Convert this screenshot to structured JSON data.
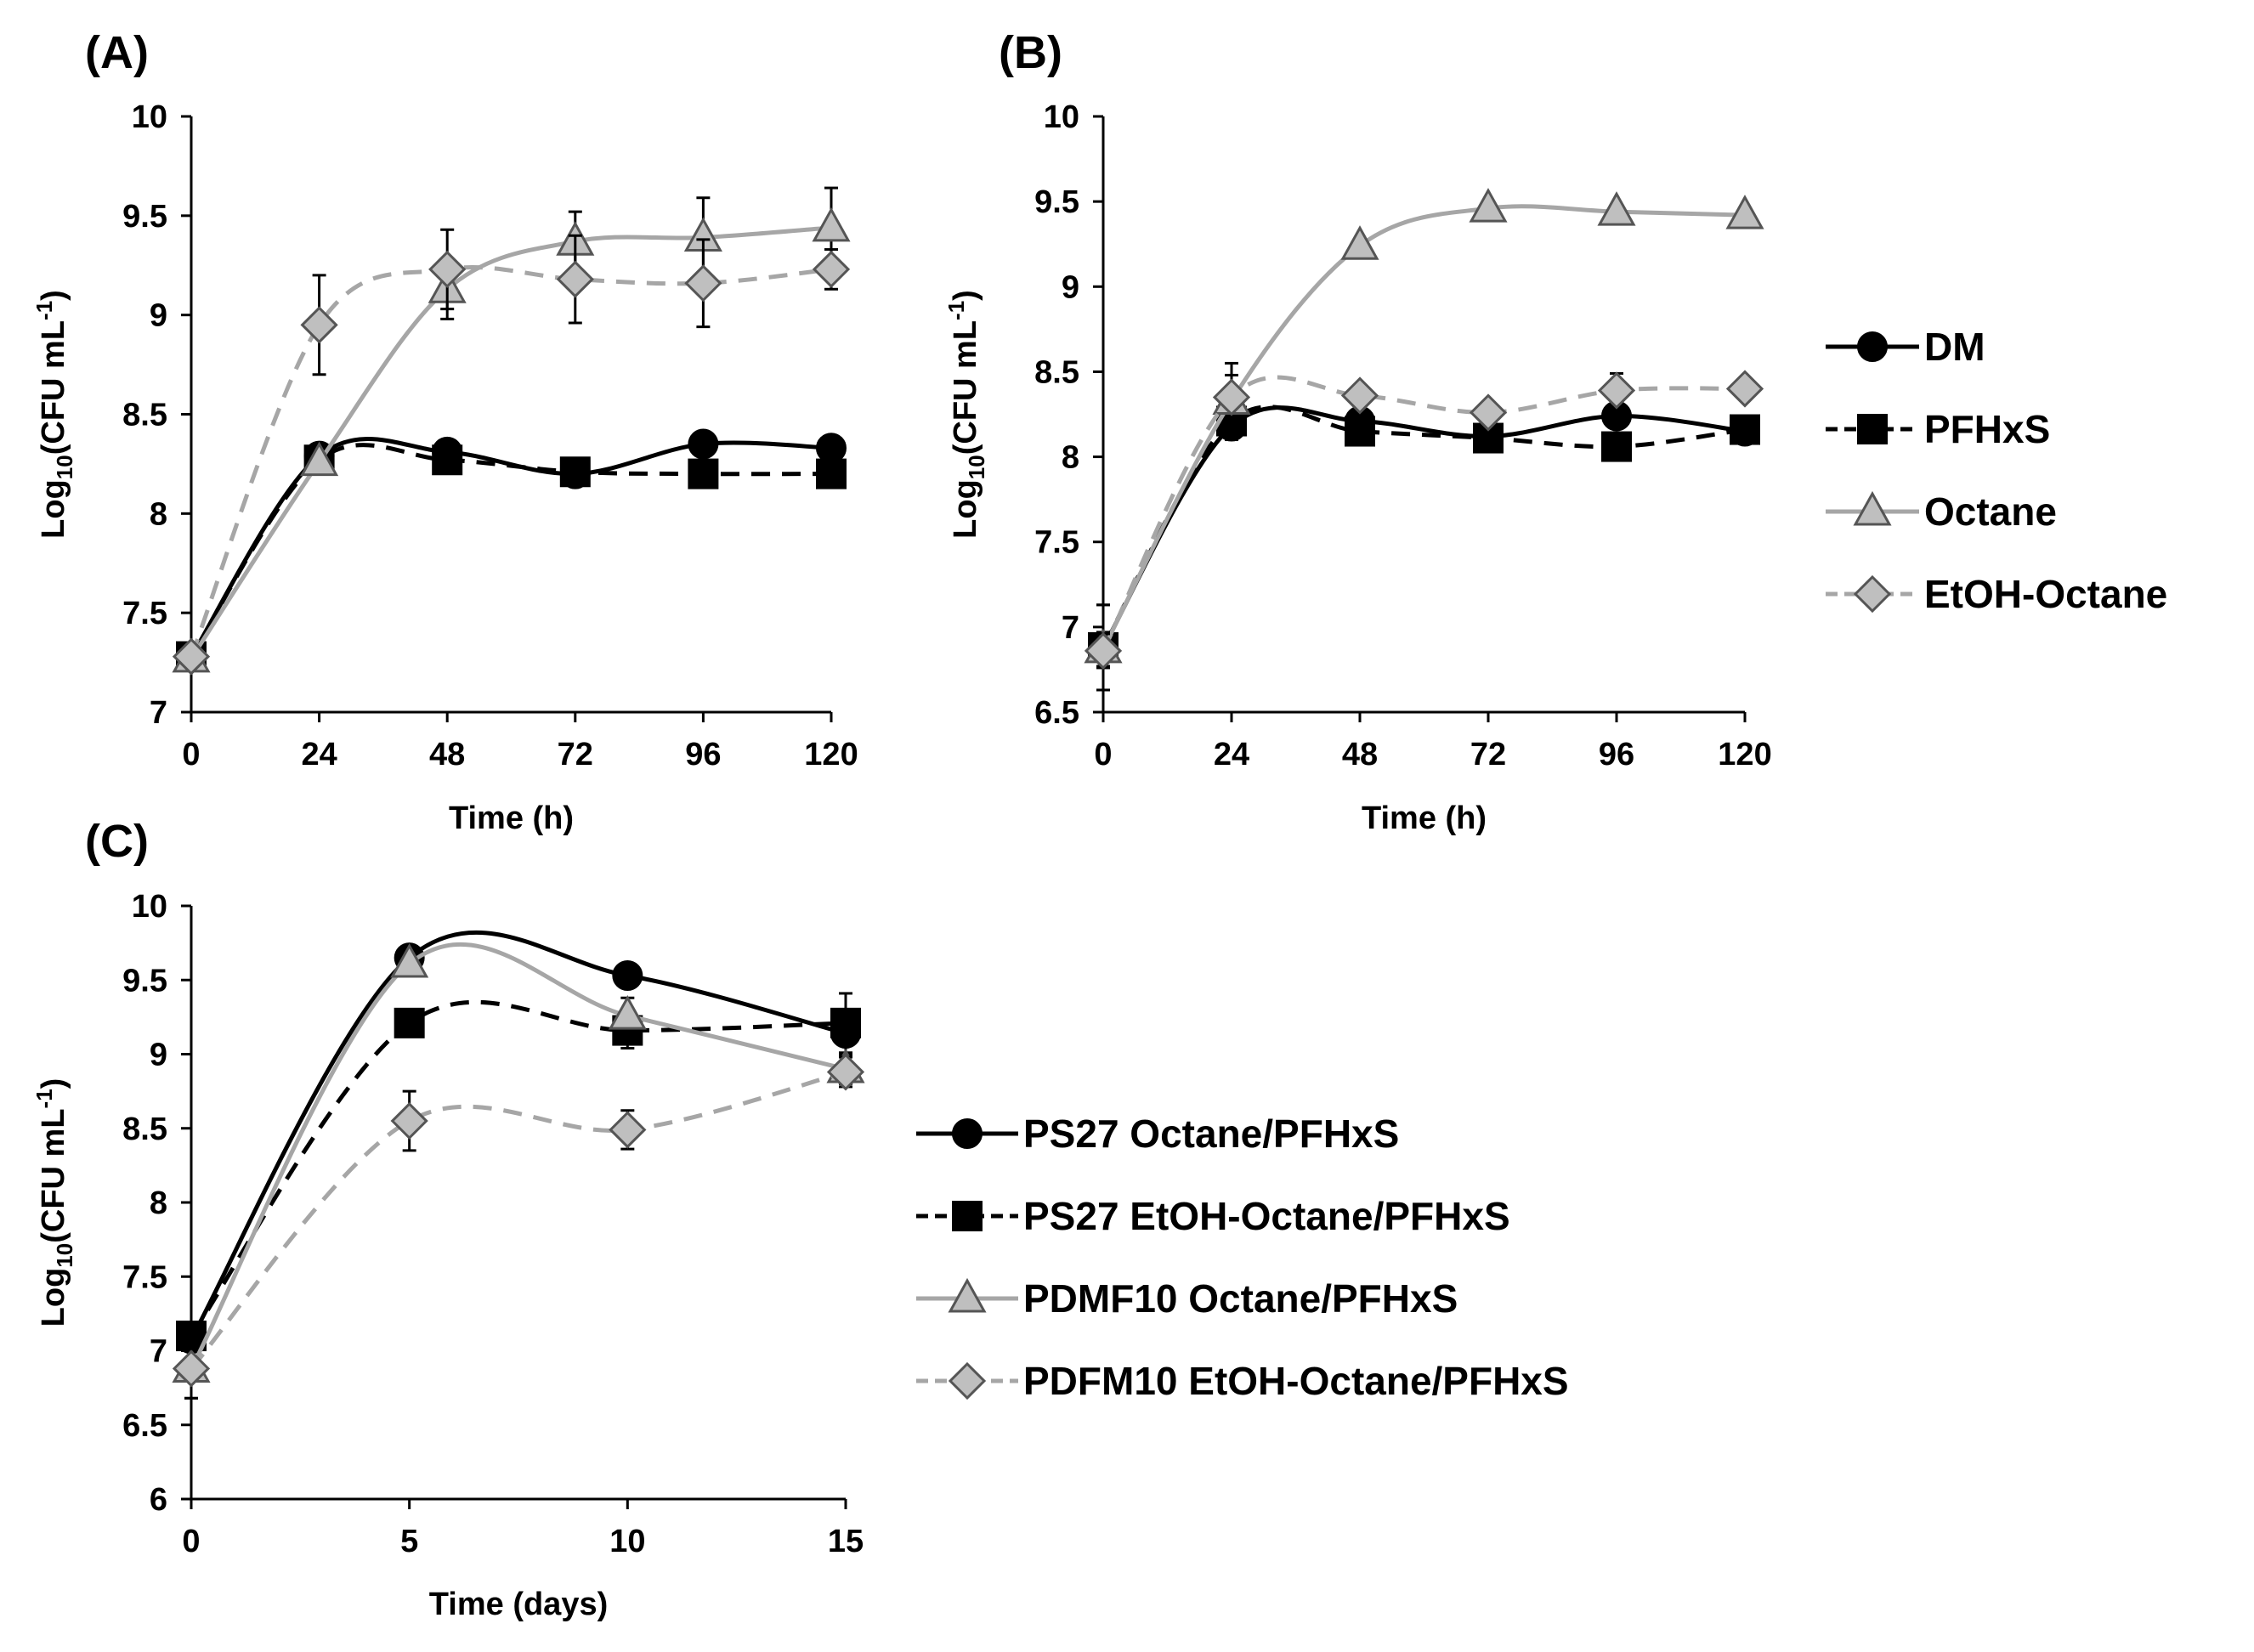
{
  "chart_data": [
    {
      "panel": "(A)",
      "type": "line",
      "xlabel": "Time (h)",
      "ylabel_base": "Log",
      "ylabel_sub": "10",
      "ylabel_unit": "(CFU mL",
      "ylabel_sup": "-1",
      "ylabel_close": ")",
      "x": [
        0,
        24,
        48,
        72,
        96,
        120
      ],
      "xticks": [
        "0",
        "24",
        "48",
        "72",
        "96",
        "120"
      ],
      "xlim": [
        0,
        120
      ],
      "ylim": [
        7,
        10
      ],
      "yticks": [
        "7",
        "7.5",
        "8",
        "8.5",
        "9",
        "9.5",
        "10"
      ],
      "series": [
        {
          "name": "DM",
          "values": [
            7.28,
            8.29,
            8.31,
            8.2,
            8.35,
            8.33
          ],
          "errors": [
            0.03,
            0.03,
            0.03,
            0.03,
            0.03,
            0.03
          ]
        },
        {
          "name": "PFHxS",
          "values": [
            7.28,
            8.27,
            8.27,
            8.21,
            8.2,
            8.2
          ],
          "errors": [
            0.03,
            0.03,
            0.03,
            0.03,
            0.03,
            0.03
          ]
        },
        {
          "name": "Octane",
          "values": [
            7.27,
            8.26,
            9.13,
            9.37,
            9.39,
            9.44
          ],
          "errors": [
            0.04,
            0.04,
            0.15,
            0.15,
            0.2,
            0.2
          ]
        },
        {
          "name": "EtOH-Octane",
          "values": [
            7.28,
            8.95,
            9.23,
            9.18,
            9.16,
            9.23
          ],
          "errors": [
            0.04,
            0.25,
            0.2,
            0.22,
            0.22,
            0.1
          ]
        }
      ]
    },
    {
      "panel": "(B)",
      "type": "line",
      "xlabel": "Time (h)",
      "ylabel_base": "Log",
      "ylabel_sub": "10",
      "ylabel_unit": "(CFU mL",
      "ylabel_sup": "-1",
      "ylabel_close": ")",
      "x": [
        0,
        24,
        48,
        72,
        96,
        120
      ],
      "xticks": [
        "0",
        "24",
        "48",
        "72",
        "96",
        "120"
      ],
      "xlim": [
        0,
        120
      ],
      "ylim": [
        6.5,
        10
      ],
      "yticks": [
        "6.5",
        "7",
        "7.5",
        "8",
        "8.5",
        "9",
        "9.5",
        "10"
      ],
      "series": [
        {
          "name": "DM",
          "values": [
            6.88,
            8.18,
            8.21,
            8.12,
            8.24,
            8.15
          ],
          "errors": [
            0.25,
            0.08,
            0.05,
            0.05,
            0.05,
            0.04
          ]
        },
        {
          "name": "PFHxS",
          "values": [
            6.88,
            8.21,
            8.15,
            8.11,
            8.06,
            8.16
          ],
          "errors": [
            0.25,
            0.08,
            0.05,
            0.05,
            0.04,
            0.04
          ]
        },
        {
          "name": "Octane",
          "values": [
            6.87,
            8.33,
            9.24,
            9.46,
            9.44,
            9.42
          ],
          "errors": [
            0.1,
            0.15,
            0.04,
            0.04,
            0.04,
            0.04
          ]
        },
        {
          "name": "EtOH-Octane",
          "values": [
            6.86,
            8.35,
            8.36,
            8.26,
            8.39,
            8.4
          ],
          "errors": [
            0.1,
            0.2,
            0.04,
            0.04,
            0.1,
            0.04
          ]
        }
      ]
    },
    {
      "panel": "(C)",
      "type": "line",
      "xlabel": "Time (days)",
      "ylabel_base": "Log",
      "ylabel_sub": "10",
      "ylabel_unit": "(CFU mL",
      "ylabel_sup": "-1",
      "ylabel_close": ")",
      "x": [
        0,
        5,
        10,
        15
      ],
      "xticks": [
        "0",
        "5",
        "10",
        "15"
      ],
      "xlim": [
        0,
        15
      ],
      "ylim": [
        6,
        10
      ],
      "yticks": [
        "6",
        "6.5",
        "7",
        "7.5",
        "8",
        "8.5",
        "9",
        "9.5",
        "10"
      ],
      "series": [
        {
          "name": "PS27 Octane/PFHxS",
          "values": [
            7.08,
            9.65,
            9.53,
            9.14
          ],
          "errors": [
            0.05,
            0.05,
            0.05,
            0.15
          ]
        },
        {
          "name": "PS27 EtOH-Octane/PFHxS",
          "values": [
            7.1,
            9.21,
            9.16,
            9.21
          ],
          "errors": [
            0.05,
            0.05,
            0.12,
            0.2
          ]
        },
        {
          "name": "PDMF10 Octane/PFHxS",
          "values": [
            6.88,
            9.61,
            9.26,
            8.9
          ],
          "errors": [
            0.2,
            0.05,
            0.12,
            0.1
          ]
        },
        {
          "name": "PDFM10 EtOH-Octane/PFHxS",
          "values": [
            6.88,
            8.55,
            8.49,
            8.88
          ],
          "errors": [
            0.2,
            0.2,
            0.13,
            0.1
          ]
        }
      ]
    }
  ],
  "legends": {
    "top": [
      "DM",
      "PFHxS",
      "Octane",
      "EtOH-Octane"
    ],
    "bottom": [
      "PS27 Octane/PFHxS",
      "PS27 EtOH-Octane/PFHxS",
      "PDMF10 Octane/PFHxS",
      "PDFM10 EtOH-Octane/PFHxS"
    ]
  },
  "colors": {
    "black": "#000000",
    "gray_line": "#a6a6a6",
    "gray_fill": "#bfbfbf",
    "axis": "#000000"
  }
}
